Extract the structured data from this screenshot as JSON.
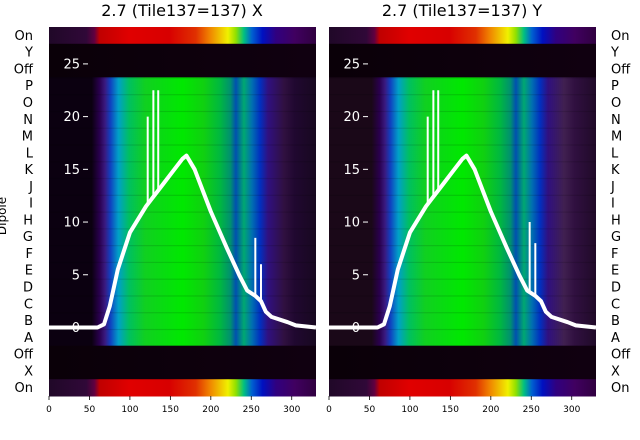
{
  "chart_data": [
    {
      "type": "heatmap",
      "title": "2.7 (Tile137=137) X",
      "ylabel": "Dipole",
      "xlabel": "",
      "xlim": [
        0,
        330
      ],
      "xticks": [
        0,
        50,
        100,
        150,
        200,
        250,
        300
      ],
      "row_labels": [
        "On",
        "Y",
        "Off",
        "P",
        "O",
        "N",
        "M",
        "L",
        "K",
        "J",
        "I",
        "H",
        "G",
        "F",
        "E",
        "D",
        "C",
        "B",
        "A",
        "Off",
        "X",
        "On"
      ],
      "overlay_y_ticks": [
        0,
        5,
        10,
        15,
        20,
        25
      ],
      "overlay_ylim": [
        -6.5,
        28.5
      ],
      "overlay_series": {
        "x": [
          0,
          60,
          68,
          75,
          85,
          100,
          120,
          140,
          155,
          165,
          170,
          180,
          200,
          220,
          235,
          245,
          255,
          262,
          268,
          275,
          295,
          305,
          330
        ],
        "y": [
          0,
          0,
          0.3,
          2,
          5.5,
          9,
          11.5,
          13.5,
          15,
          16,
          16.3,
          15,
          11,
          7.5,
          5,
          3.5,
          3,
          2.5,
          1.5,
          1,
          0.5,
          0.2,
          0
        ]
      },
      "overlay_spikes": [
        {
          "x": 122,
          "y": 20
        },
        {
          "x": 129,
          "y": 22.5
        },
        {
          "x": 135,
          "y": 22.5
        },
        {
          "x": 255,
          "y": 8.5
        },
        {
          "x": 262,
          "y": 6
        }
      ]
    },
    {
      "type": "heatmap",
      "title": "2.7 (Tile137=137) Y",
      "ylabel": "",
      "xlabel": "",
      "xlim": [
        0,
        330
      ],
      "xticks": [
        0,
        50,
        100,
        150,
        200,
        250,
        300
      ],
      "row_labels": [
        "On",
        "Y",
        "Off",
        "P",
        "O",
        "N",
        "M",
        "L",
        "K",
        "J",
        "I",
        "H",
        "G",
        "F",
        "E",
        "D",
        "C",
        "B",
        "A",
        "Off",
        "X",
        "On"
      ],
      "overlay_y_ticks": [
        0,
        5,
        10,
        15,
        20,
        25
      ],
      "overlay_ylim": [
        -6.5,
        28.5
      ],
      "overlay_series": {
        "x": [
          0,
          60,
          68,
          75,
          85,
          100,
          120,
          140,
          155,
          165,
          170,
          180,
          200,
          220,
          235,
          245,
          255,
          262,
          268,
          275,
          295,
          305,
          330
        ],
        "y": [
          0,
          0,
          0.3,
          2,
          5.5,
          9,
          11.5,
          13.5,
          15,
          16,
          16.3,
          15,
          11,
          7.5,
          5,
          3.5,
          3,
          2.5,
          1.5,
          1,
          0.5,
          0.2,
          0
        ]
      },
      "overlay_spikes": [
        {
          "x": 122,
          "y": 20
        },
        {
          "x": 129,
          "y": 22.5
        },
        {
          "x": 135,
          "y": 22.5
        },
        {
          "x": 248,
          "y": 10
        },
        {
          "x": 255,
          "y": 8
        }
      ]
    }
  ]
}
